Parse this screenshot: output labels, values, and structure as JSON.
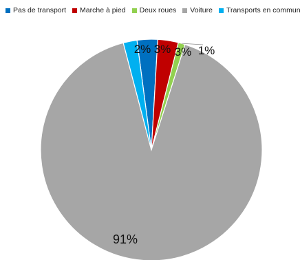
{
  "chart_data": {
    "type": "pie",
    "legend_position": "top",
    "start_angle_deg": -7.5,
    "slices": [
      {
        "label": "Pas de transport",
        "value": 3,
        "data_label": "3%",
        "color": "#0070c0"
      },
      {
        "label": "Marche à pied",
        "value": 3,
        "data_label": "3%",
        "color": "#c00000"
      },
      {
        "label": "Deux roues",
        "value": 1,
        "data_label": "1%",
        "color": "#92d050"
      },
      {
        "label": "Voiture",
        "value": 91,
        "data_label": "91%",
        "color": "#a6a6a6"
      },
      {
        "label": "Transports en commun",
        "value": 2,
        "data_label": "2%",
        "color": "#00b0f0"
      }
    ]
  }
}
